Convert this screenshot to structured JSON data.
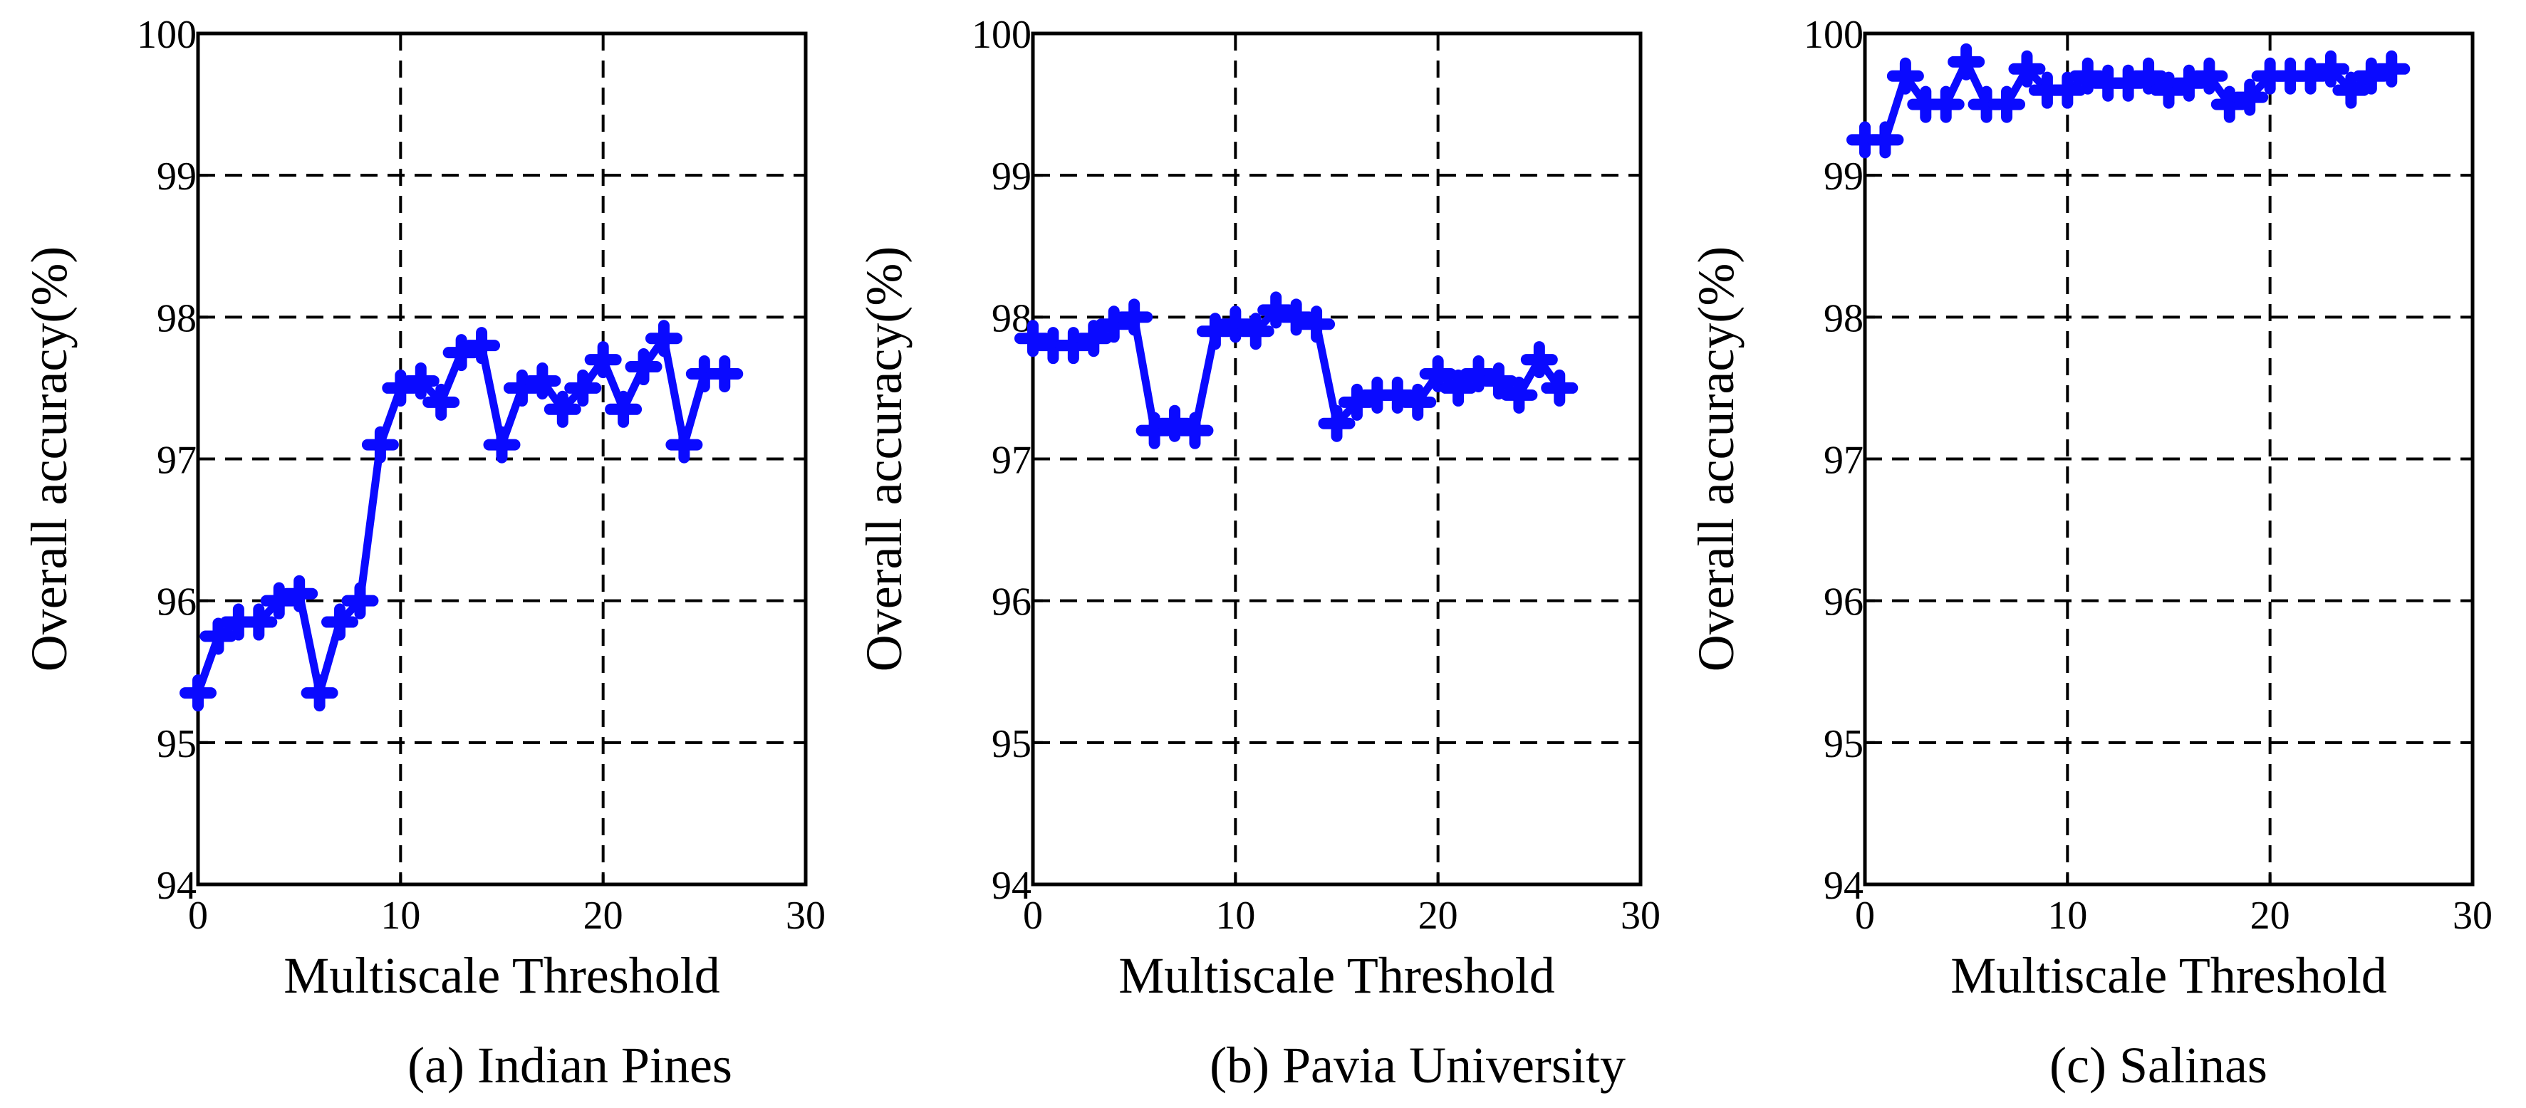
{
  "chart_data": [
    {
      "type": "line",
      "caption": "(a) Indian Pines",
      "xlabel": "Multiscale Threshold",
      "ylabel": "Overall accuracy(%)",
      "xlim": [
        0,
        30
      ],
      "ylim": [
        94,
        100
      ],
      "xticks": [
        0,
        10,
        20,
        30
      ],
      "yticks": [
        94,
        95,
        96,
        97,
        98,
        99,
        100
      ],
      "grid": true,
      "series_color": "#0a0aff",
      "x": [
        0,
        1,
        2,
        3,
        4,
        5,
        6,
        7,
        8,
        9,
        10,
        11,
        12,
        13,
        14,
        15,
        16,
        17,
        18,
        19,
        20,
        21,
        22,
        23,
        24,
        25,
        26
      ],
      "values": [
        95.35,
        95.75,
        95.85,
        95.85,
        96.0,
        96.05,
        95.35,
        95.85,
        96.0,
        97.1,
        97.5,
        97.55,
        97.4,
        97.75,
        97.8,
        97.1,
        97.5,
        97.55,
        97.35,
        97.5,
        97.7,
        97.35,
        97.65,
        97.85,
        97.1,
        97.6,
        97.6
      ]
    },
    {
      "type": "line",
      "caption": "(b) Pavia University",
      "xlabel": "Multiscale Threshold",
      "ylabel": "Overall accuracy(%)",
      "xlim": [
        0,
        30
      ],
      "ylim": [
        94,
        100
      ],
      "xticks": [
        0,
        10,
        20,
        30
      ],
      "yticks": [
        94,
        95,
        96,
        97,
        98,
        99,
        100
      ],
      "grid": true,
      "series_color": "#0a0aff",
      "x": [
        0,
        1,
        2,
        3,
        4,
        5,
        6,
        7,
        8,
        9,
        10,
        11,
        12,
        13,
        14,
        15,
        16,
        17,
        18,
        19,
        20,
        21,
        22,
        23,
        24,
        25,
        26
      ],
      "values": [
        97.85,
        97.8,
        97.8,
        97.85,
        97.95,
        98.0,
        97.2,
        97.25,
        97.2,
        97.9,
        97.95,
        97.9,
        98.05,
        98.0,
        97.95,
        97.25,
        97.4,
        97.45,
        97.45,
        97.4,
        97.6,
        97.5,
        97.6,
        97.55,
        97.45,
        97.7,
        97.5
      ]
    },
    {
      "type": "line",
      "caption": "(c) Salinas",
      "xlabel": "Multiscale Threshold",
      "ylabel": "Overall accuracy(%)",
      "xlim": [
        0,
        30
      ],
      "ylim": [
        94,
        100
      ],
      "xticks": [
        0,
        10,
        20,
        30
      ],
      "yticks": [
        94,
        95,
        96,
        97,
        98,
        99,
        100
      ],
      "grid": true,
      "series_color": "#0a0aff",
      "x": [
        0,
        1,
        2,
        3,
        4,
        5,
        6,
        7,
        8,
        9,
        10,
        11,
        12,
        13,
        14,
        15,
        16,
        17,
        18,
        19,
        20,
        21,
        22,
        23,
        24,
        25,
        26
      ],
      "values": [
        99.25,
        99.25,
        99.7,
        99.5,
        99.5,
        99.8,
        99.5,
        99.5,
        99.75,
        99.6,
        99.6,
        99.7,
        99.65,
        99.65,
        99.7,
        99.6,
        99.65,
        99.7,
        99.5,
        99.55,
        99.7,
        99.7,
        99.7,
        99.75,
        99.6,
        99.7,
        99.75
      ]
    }
  ]
}
